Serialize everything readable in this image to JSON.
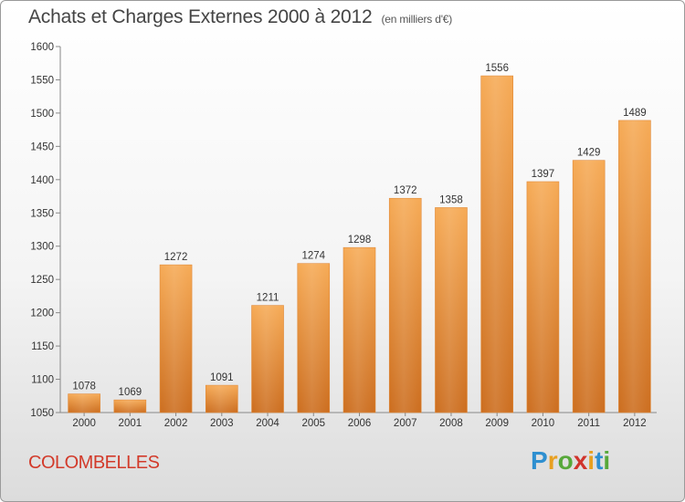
{
  "title": "Achats et Charges Externes 2000 à 2012",
  "unit": "(en milliers d'€)",
  "place": "COLOMBELLES",
  "logo": [
    "P",
    "r",
    "o",
    "x",
    "i",
    "t",
    "i"
  ],
  "colors": {
    "bar_top": "#f6aa55",
    "bar_bottom": "#cc6d1e",
    "place": "#d23a2a"
  },
  "chart_data": {
    "type": "bar",
    "categories": [
      "2000",
      "2001",
      "2002",
      "2003",
      "2004",
      "2005",
      "2006",
      "2007",
      "2008",
      "2009",
      "2010",
      "2011",
      "2012"
    ],
    "values": [
      1078,
      1069,
      1272,
      1091,
      1211,
      1274,
      1298,
      1372,
      1358,
      1556,
      1397,
      1429,
      1489
    ],
    "ylim": [
      1050,
      1600
    ],
    "yticks": [
      1050,
      1100,
      1150,
      1200,
      1250,
      1300,
      1350,
      1400,
      1450,
      1500,
      1550,
      1600
    ],
    "grid": false,
    "legend": "none"
  }
}
